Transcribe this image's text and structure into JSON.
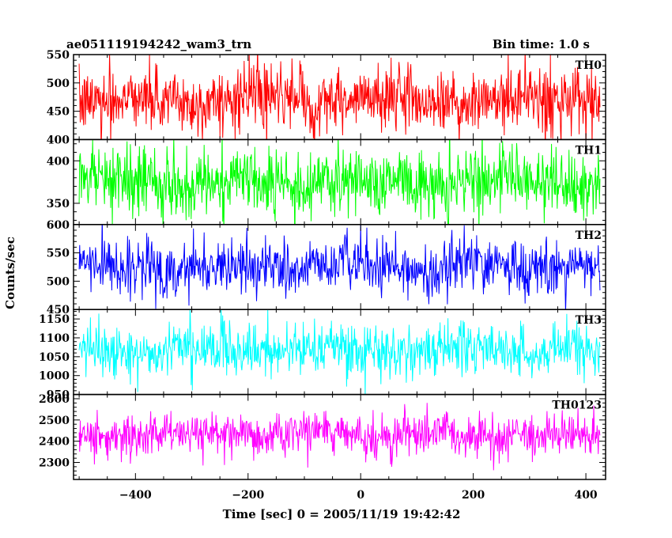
{
  "chart_data": {
    "type": "line",
    "title": "ae051119194242_wam3_trn",
    "subtitle": "Bin time: 1.0 s",
    "xlabel": "Time [sec] 0 = 2005/11/19 19:42:42",
    "ylabel": "Counts/sec",
    "xlim": [
      -510,
      435
    ],
    "data_x_range": [
      -500,
      425
    ],
    "x_step": 1,
    "xticks": [
      -400,
      -200,
      0,
      200,
      400
    ],
    "grid": false,
    "series": [
      {
        "name": "TH0",
        "color": "#ff0000",
        "ylim": [
          400,
          550
        ],
        "yticks": [
          400,
          450,
          500,
          550
        ],
        "mean": 470,
        "amplitude": 28
      },
      {
        "name": "TH1",
        "color": "#00ff00",
        "ylim": [
          325,
          425
        ],
        "yticks": [
          350,
          400
        ],
        "mean": 375,
        "amplitude": 20
      },
      {
        "name": "TH2",
        "color": "#0000ff",
        "ylim": [
          450,
          600
        ],
        "yticks": [
          450,
          500,
          550,
          600
        ],
        "mean": 525,
        "amplitude": 25
      },
      {
        "name": "TH3",
        "color": "#00ffff",
        "ylim": [
          950,
          1175
        ],
        "yticks": [
          950,
          1000,
          1050,
          1100,
          1150
        ],
        "mean": 1070,
        "amplitude": 35
      },
      {
        "name": "TH0123",
        "color": "#ff00ff",
        "ylim": [
          2220,
          2620
        ],
        "yticks": [
          2300,
          2400,
          2500,
          2600
        ],
        "mean": 2430,
        "amplitude": 50
      }
    ]
  }
}
